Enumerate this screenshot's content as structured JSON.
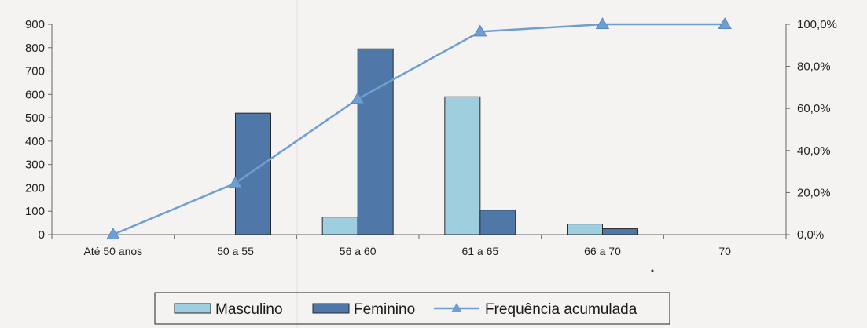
{
  "chart_data": {
    "type": "bar",
    "categories": [
      "Até 50 anos",
      "50 a 55",
      "56 a 60",
      "61 a 65",
      "66 a 70",
      "70"
    ],
    "series": [
      {
        "name": "Masculino",
        "type": "bar",
        "axis": "left",
        "color": "#9fcfdf",
        "values": [
          0,
          0,
          75,
          590,
          45,
          0
        ]
      },
      {
        "name": "Feminino",
        "type": "bar",
        "axis": "left",
        "color": "#4f78a8",
        "values": [
          0,
          520,
          795,
          105,
          25,
          0
        ]
      },
      {
        "name": "Frequência acumulada",
        "type": "line",
        "axis": "right",
        "color": "#6f9fd0",
        "marker": "triangle",
        "values": [
          0.0,
          24.5,
          64.5,
          96.5,
          100.0,
          100.0
        ]
      }
    ],
    "y_left": {
      "range": [
        0,
        900
      ],
      "ticks": [
        "0",
        "100",
        "200",
        "300",
        "400",
        "500",
        "600",
        "700",
        "800",
        "900"
      ]
    },
    "y_right": {
      "range": [
        0,
        100
      ],
      "ticks": [
        "0,0%",
        "20,0%",
        "40,0%",
        "60,0%",
        "80,0%",
        "100,0%"
      ]
    },
    "grid": false,
    "legend": {
      "position": "bottom",
      "items": [
        "Masculino",
        "Feminino",
        "Frequência acumulada"
      ]
    }
  }
}
